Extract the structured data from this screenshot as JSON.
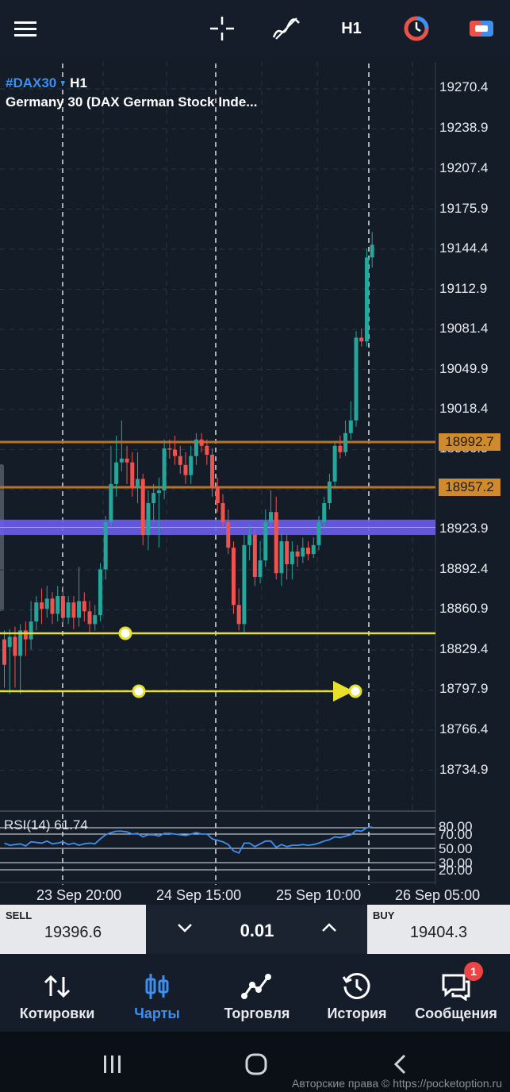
{
  "toolbar": {
    "menu_icon": "hamburger-icon",
    "crosshair_icon": "crosshair-icon",
    "indicators_icon": "indicators-icon",
    "timeframe": "H1",
    "clock_icon": "clock-icon",
    "toggle_icon": "toggle-icon"
  },
  "instrument": {
    "symbol": "#DAX30",
    "timeframe": "H1",
    "description": "Germany 30 (DAX German Stock Inde..."
  },
  "price_axis": [
    "19270.4",
    "19238.9",
    "19207.4",
    "19175.9",
    "19144.4",
    "19112.9",
    "19081.4",
    "19049.9",
    "19018.4",
    "18986.9",
    "18923.9",
    "18892.4",
    "18860.9",
    "18829.4",
    "18797.9",
    "18766.4",
    "18734.9"
  ],
  "lines": {
    "resistance_upper": "18992.7",
    "resistance_lower": "18957.2"
  },
  "rsi": {
    "label": "RSI(14) 61.74",
    "levels": [
      "80.00",
      "70.00",
      "50.00",
      "30.00",
      "20.00"
    ]
  },
  "time_axis": [
    "23 Sep 20:00",
    "24 Sep 15:00",
    "25 Sep 10:00",
    "26 Sep 05:00"
  ],
  "trade": {
    "sell_label": "SELL",
    "sell_price": "19396.6",
    "lot": "0.01",
    "buy_label": "BUY",
    "buy_price": "19404.3"
  },
  "nav": {
    "items": [
      {
        "label": "Котировки",
        "icon": "quotes-icon"
      },
      {
        "label": "Чарты",
        "icon": "charts-icon"
      },
      {
        "label": "Торговля",
        "icon": "trade-icon"
      },
      {
        "label": "История",
        "icon": "history-icon"
      },
      {
        "label": "Сообщения",
        "icon": "messages-icon"
      }
    ],
    "messages_badge": "1"
  },
  "copyright": "Авторские права © https://pocketoption.ru",
  "colors": {
    "background": "#141c28",
    "bull": "#26a69a",
    "bear": "#ef5350",
    "accent": "#3d8ff0",
    "hline": "#b8742a",
    "label_fill": "#d08a2e",
    "zone": "#6b5cf0",
    "trendline": "#e8e02a"
  }
}
